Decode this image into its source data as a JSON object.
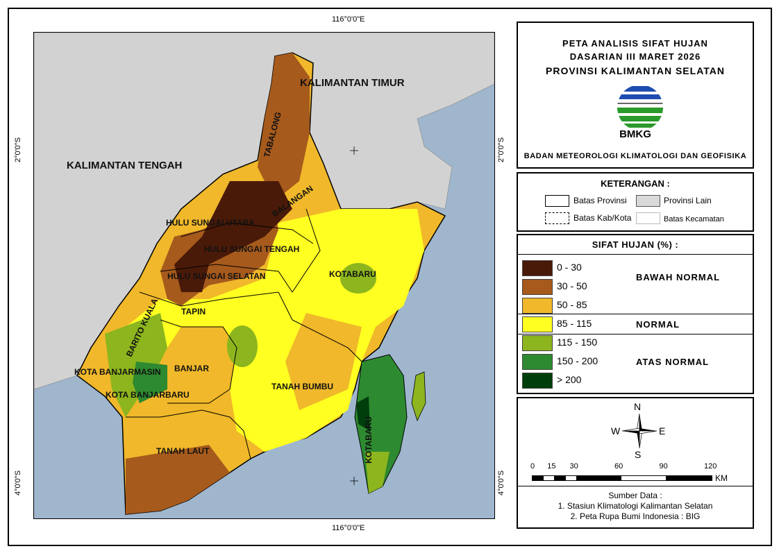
{
  "title": {
    "line1": "PETA ANALISIS SIFAT HUJAN",
    "line2": "DASARIAN III MARET 2026",
    "line3": "PROVINSI KALIMANTAN SELATAN",
    "logo_text": "BMKG",
    "agency": "BADAN METEOROLOGI KLIMATOLOGI DAN GEOFISIKA"
  },
  "coords": {
    "lon_top": "116°0'0\"E",
    "lon_bottom": "116°0'0\"E",
    "lat_left_2": "2°0'0\"S",
    "lat_right_2": "2°0'0\"S",
    "lat_left_4": "4°0'0\"S",
    "lat_right_4": "4°0'0\"S"
  },
  "map_labels": {
    "kaltim": "KALIMANTAN TIMUR",
    "kalteng": "KALIMANTAN TENGAH",
    "tabalong": "TABALONG",
    "balangan": "BALANGAN",
    "hsu": "HULU SUNGAI UTARA",
    "hst": "HULU SUNGAI TENGAH",
    "hss": "HULU SUNGAI SELATAN",
    "kotabaru_n": "KOTABARU",
    "tapin": "TAPIN",
    "barito_kuala": "BARITO KUALA",
    "banjarmasin": "KOTA BANJARMASIN",
    "banjar": "BANJAR",
    "banjarbaru": "KOTA BANJARBARU",
    "tanah_bumbu": "TANAH BUMBU",
    "kotabaru_s": "KOTABARU",
    "tanah_laut": "TANAH LAUT"
  },
  "keterangan": {
    "title": "KETERANGAN :",
    "items": [
      "Batas Provinsi",
      "Provinsi Lain",
      "Batas Kab/Kota",
      "Batas Kecamatan"
    ]
  },
  "legend": {
    "title": "SIFAT HUJAN (%) :",
    "classes": [
      {
        "label": "0 - 30",
        "color": "#4a1a08"
      },
      {
        "label": "30 - 50",
        "color": "#a65a1c"
      },
      {
        "label": "50 - 85",
        "color": "#f0b82a"
      },
      {
        "label": "85 - 115",
        "color": "#ffff22"
      },
      {
        "label": "115 - 150",
        "color": "#8cb51e"
      },
      {
        "label": "150 - 200",
        "color": "#2e8a30"
      },
      {
        "label": "> 200",
        "color": "#003e0c"
      }
    ],
    "categories": [
      "BAWAH NORMAL",
      "NORMAL",
      "ATAS NORMAL"
    ]
  },
  "north_arrow": {
    "n": "N",
    "s": "S",
    "e": "E",
    "w": "W"
  },
  "scale": {
    "ticks": [
      "0",
      "15",
      "30",
      "60",
      "90",
      "120"
    ],
    "unit": "KM"
  },
  "source": {
    "title": "Sumber Data :",
    "line1": "1. Stasiun Klimatologi Kalimantan Selatan",
    "line2": "2. Peta Rupa Bumi Indonesia : BIG"
  }
}
